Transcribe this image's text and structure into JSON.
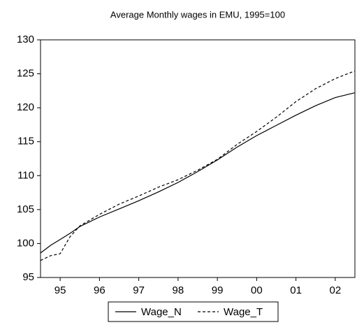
{
  "chart_data": {
    "type": "line",
    "title": "Average Monthly wages in EMU, 1995=100",
    "x": [
      1995.0,
      1995.25,
      1995.5,
      1995.75,
      1996.0,
      1996.5,
      1997.0,
      1997.5,
      1998.0,
      1998.5,
      1999.0,
      1999.5,
      2000.0,
      2000.5,
      2001.0,
      2001.5,
      2002.0,
      2002.5,
      2002.99
    ],
    "series": [
      {
        "name": "Wage_N",
        "color": "#000000",
        "dash": false,
        "values": [
          98.6,
          99.7,
          100.6,
          101.5,
          102.5,
          103.9,
          105.1,
          106.3,
          107.6,
          109.0,
          110.6,
          112.3,
          114.2,
          115.9,
          117.4,
          118.9,
          120.3,
          121.5,
          122.2
        ]
      },
      {
        "name": "Wage_T",
        "color": "#000000",
        "dash": true,
        "values": [
          97.5,
          98.2,
          98.5,
          101.0,
          102.6,
          104.3,
          105.8,
          107.0,
          108.3,
          109.4,
          110.8,
          112.4,
          114.6,
          116.5,
          118.6,
          120.9,
          122.8,
          124.3,
          125.4
        ]
      }
    ],
    "xlim": [
      1995,
      2003
    ],
    "ylim": [
      95,
      130
    ],
    "yticks": [
      95,
      100,
      105,
      110,
      115,
      120,
      125,
      130
    ],
    "xticks": [
      {
        "value": 1995.5,
        "label": "95"
      },
      {
        "value": 1996.5,
        "label": "96"
      },
      {
        "value": 1997.5,
        "label": "97"
      },
      {
        "value": 1998.5,
        "label": "98"
      },
      {
        "value": 1999.5,
        "label": "99"
      },
      {
        "value": 2000.5,
        "label": "00"
      },
      {
        "value": 2001.5,
        "label": "01"
      },
      {
        "value": 2002.5,
        "label": "02"
      }
    ],
    "grid": false,
    "legend": "bottom"
  }
}
